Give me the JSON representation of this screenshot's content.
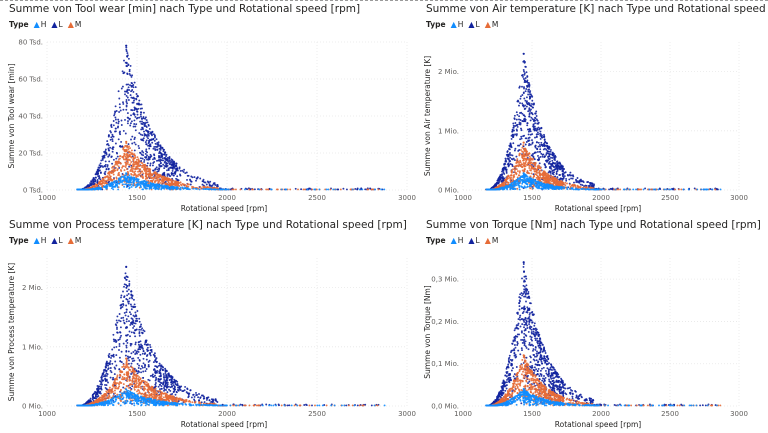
{
  "colors": {
    "H": "#118dff",
    "L": "#12239e",
    "M": "#e66c37"
  },
  "legend": {
    "title": "Type",
    "items": [
      "H",
      "L",
      "M"
    ]
  },
  "chart_data": [
    {
      "type": "scatter",
      "title": "Summe von Tool wear [min] nach Type und Rotational speed [rpm]",
      "xlabel": "Rotational speed [rpm]",
      "ylabel": "Summe von Tool wear [min]",
      "xlim": [
        1000,
        3000
      ],
      "ylim": [
        0,
        80000
      ],
      "xticks": [
        1000,
        1500,
        2000,
        2500,
        3000
      ],
      "yticks": [
        {
          "value": 0,
          "label": "0 Tsd."
        },
        {
          "value": 20000,
          "label": "20 Tsd."
        },
        {
          "value": 40000,
          "label": "40 Tsd."
        },
        {
          "value": 60000,
          "label": "60 Tsd."
        },
        {
          "value": 80000,
          "label": "80 Tsd."
        }
      ],
      "max_by_series": {
        "L": 78000,
        "M": 26000,
        "H": 9000
      },
      "grid": true,
      "legend_position": "top-left"
    },
    {
      "type": "scatter",
      "title": "Summe von Air temperature [K] nach Type und Rotational speed [rpm]",
      "xlabel": "Rotational speed [rpm]",
      "ylabel": "Summe von Air temperature [K]",
      "xlim": [
        1000,
        3000
      ],
      "ylim": [
        0,
        2500000
      ],
      "xticks": [
        1000,
        1500,
        2000,
        2500,
        3000
      ],
      "yticks": [
        {
          "value": 0,
          "label": "0 Mio."
        },
        {
          "value": 1000000,
          "label": "1 Mio."
        },
        {
          "value": 2000000,
          "label": "2 Mio."
        }
      ],
      "max_by_series": {
        "L": 2300000,
        "M": 800000,
        "H": 280000
      },
      "grid": true,
      "legend_position": "top-left"
    },
    {
      "type": "scatter",
      "title": "Summe von Process temperature [K] nach Type und Rotational speed [rpm]",
      "xlabel": "Rotational speed [rpm]",
      "ylabel": "Summe von Process temperature [K]",
      "xlim": [
        1000,
        3000
      ],
      "ylim": [
        0,
        2500000
      ],
      "xticks": [
        1000,
        1500,
        2000,
        2500,
        3000
      ],
      "yticks": [
        {
          "value": 0,
          "label": "0 Mio."
        },
        {
          "value": 1000000,
          "label": "1 Mio."
        },
        {
          "value": 2000000,
          "label": "2 Mio."
        }
      ],
      "max_by_series": {
        "L": 2350000,
        "M": 800000,
        "H": 280000
      },
      "grid": true,
      "legend_position": "top-left"
    },
    {
      "type": "scatter",
      "title": "Summe von Torque [Nm] nach Type und Rotational speed [rpm]",
      "xlabel": "Rotational speed [rpm]",
      "ylabel": "Summe von Torque [Nm]",
      "xlim": [
        1000,
        3000
      ],
      "ylim": [
        0,
        0.35
      ],
      "xticks": [
        1000,
        1500,
        2000,
        2500,
        3000
      ],
      "yticks": [
        {
          "value": 0,
          "label": "0,0 Mio."
        },
        {
          "value": 0.1,
          "label": "0,1 Mio."
        },
        {
          "value": 0.2,
          "label": "0,2 Mio."
        },
        {
          "value": 0.3,
          "label": "0,3 Mio."
        }
      ],
      "max_by_series": {
        "L": 0.34,
        "M": 0.12,
        "H": 0.04
      },
      "grid": true,
      "legend_position": "top-left"
    }
  ]
}
